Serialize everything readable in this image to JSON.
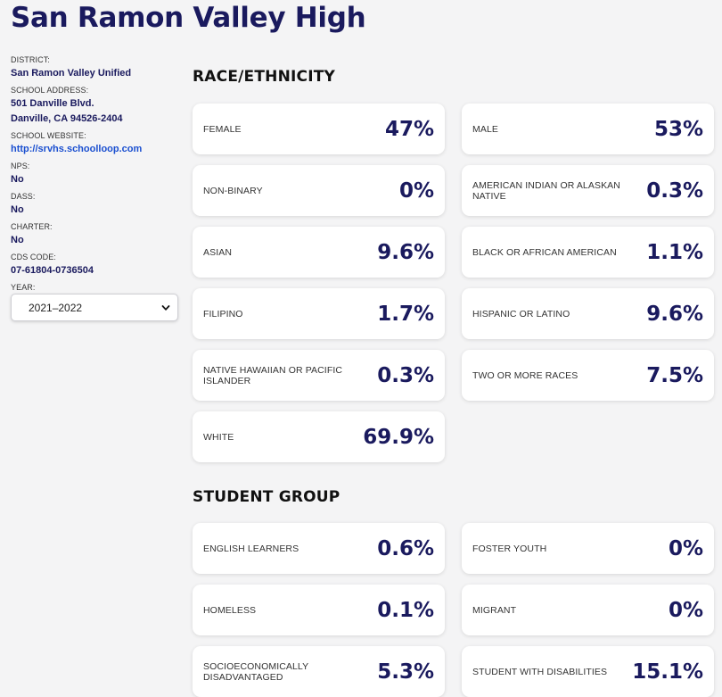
{
  "school": {
    "title": "San Ramon Valley High"
  },
  "sidebar": {
    "district_label": "DISTRICT:",
    "district_value": "San Ramon Valley Unified",
    "address_label": "SCHOOL ADDRESS:",
    "address_line1": "501 Danville Blvd.",
    "address_line2": "Danville, CA 94526-2404",
    "website_label": "SCHOOL WEBSITE:",
    "website_value": "http://srvhs.schoolloop.com",
    "nps_label": "NPS:",
    "nps_value": "No",
    "dass_label": "DASS:",
    "dass_value": "No",
    "charter_label": "CHARTER:",
    "charter_value": "No",
    "cds_label": "CDS CODE:",
    "cds_value": "07-61804-0736504",
    "year_label": "YEAR:",
    "year_selected": "2021–2022"
  },
  "race": {
    "title": "RACE/ETHNICITY",
    "cards": [
      {
        "label": "FEMALE",
        "value": "47%"
      },
      {
        "label": "MALE",
        "value": "53%"
      },
      {
        "label": "NON-BINARY",
        "value": "0%"
      },
      {
        "label": "AMERICAN INDIAN OR ALASKAN NATIVE",
        "value": "0.3%"
      },
      {
        "label": "ASIAN",
        "value": "9.6%"
      },
      {
        "label": "BLACK OR AFRICAN AMERICAN",
        "value": "1.1%"
      },
      {
        "label": "FILIPINO",
        "value": "1.7%"
      },
      {
        "label": "HISPANIC OR LATINO",
        "value": "9.6%"
      },
      {
        "label": "NATIVE HAWAIIAN OR PACIFIC ISLANDER",
        "value": "0.3%"
      },
      {
        "label": "TWO OR MORE RACES",
        "value": "7.5%"
      },
      {
        "label": "WHITE",
        "value": "69.9%"
      }
    ]
  },
  "group": {
    "title": "STUDENT GROUP",
    "cards": [
      {
        "label": "ENGLISH LEARNERS",
        "value": "0.6%"
      },
      {
        "label": "FOSTER YOUTH",
        "value": "0%"
      },
      {
        "label": "HOMELESS",
        "value": "0.1%"
      },
      {
        "label": "MIGRANT",
        "value": "0%"
      },
      {
        "label": "SOCIOECONOMICALLY DISADVANTAGED",
        "value": "5.3%"
      },
      {
        "label": "STUDENT WITH DISABILITIES",
        "value": "15.1%"
      }
    ]
  },
  "icons": {
    "year_chevron": "chevron-down-icon"
  },
  "colors": {
    "brand": "#1a1a5e",
    "link": "#1a4fd0",
    "background": "#f4f4f5"
  }
}
